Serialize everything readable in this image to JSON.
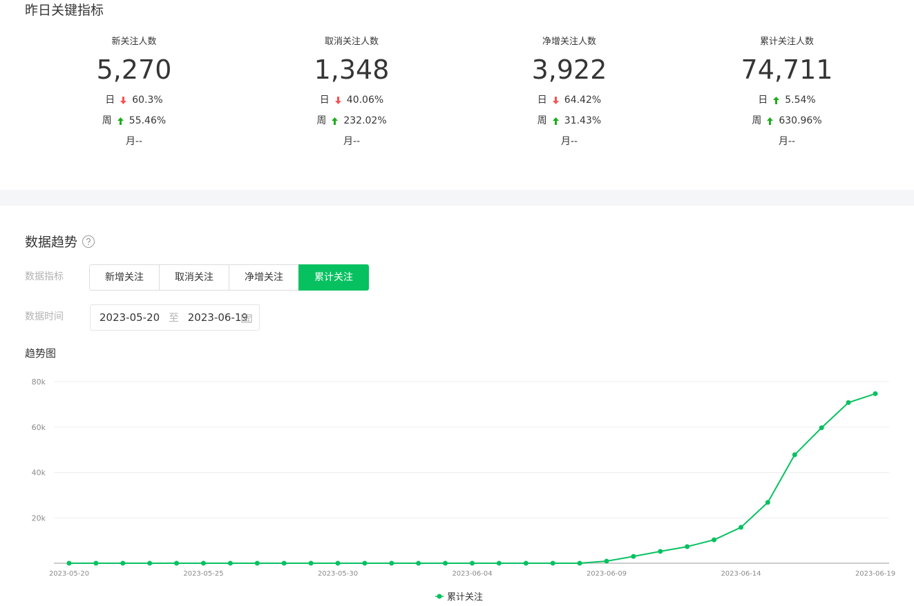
{
  "header": {
    "title": "昨日关键指标"
  },
  "metrics": [
    {
      "label": "新关注人数",
      "value": "5,270",
      "rows": [
        {
          "label": "日",
          "direction": "down",
          "change": "60.3%"
        },
        {
          "label": "周",
          "direction": "up",
          "change": "55.46%"
        }
      ],
      "month": "月--"
    },
    {
      "label": "取消关注人数",
      "value": "1,348",
      "rows": [
        {
          "label": "日",
          "direction": "down",
          "change": "40.06%"
        },
        {
          "label": "周",
          "direction": "up",
          "change": "232.02%"
        }
      ],
      "month": "月--"
    },
    {
      "label": "净增关注人数",
      "value": "3,922",
      "rows": [
        {
          "label": "日",
          "direction": "down",
          "change": "64.42%"
        },
        {
          "label": "周",
          "direction": "up",
          "change": "31.43%"
        }
      ],
      "month": "月--"
    },
    {
      "label": "累计关注人数",
      "value": "74,711",
      "rows": [
        {
          "label": "日",
          "direction": "up",
          "change": "5.54%"
        },
        {
          "label": "周",
          "direction": "up",
          "change": "630.96%"
        }
      ],
      "month": "月--"
    }
  ],
  "trend": {
    "title": "数据趋势",
    "indicator_label": "数据指标",
    "tabs": [
      "新增关注",
      "取消关注",
      "净增关注",
      "累计关注"
    ],
    "active_tab": 3,
    "time_label": "数据时间",
    "date_start": "2023-05-20",
    "date_sep": "至",
    "date_end": "2023-06-19",
    "chart_title": "趋势图"
  },
  "chart_data": {
    "type": "line",
    "categories": [
      "2023-05-20",
      null,
      null,
      null,
      null,
      "2023-05-25",
      null,
      null,
      null,
      null,
      "2023-05-30",
      null,
      null,
      null,
      null,
      "2023-06-04",
      null,
      null,
      null,
      null,
      "2023-06-09",
      null,
      null,
      null,
      null,
      "2023-06-14",
      null,
      null,
      null,
      null,
      "2023-06-19"
    ],
    "series": [
      {
        "name": "累计关注",
        "color": "#07c160",
        "values": [
          0,
          0,
          0,
          0,
          0,
          0,
          0,
          0,
          0,
          0,
          0,
          0,
          0,
          0,
          0,
          0,
          0,
          0,
          0,
          0,
          900,
          3000,
          5200,
          7300,
          10300,
          15800,
          26800,
          47800,
          59700,
          70800,
          74711
        ]
      }
    ],
    "ylim": [
      0,
      80000
    ],
    "yticks": [
      {
        "value": 20000,
        "label": "20k"
      },
      {
        "value": 40000,
        "label": "40k"
      },
      {
        "value": 60000,
        "label": "60k"
      },
      {
        "value": 80000,
        "label": "80k"
      }
    ],
    "grid": true,
    "legend": "bottom"
  }
}
